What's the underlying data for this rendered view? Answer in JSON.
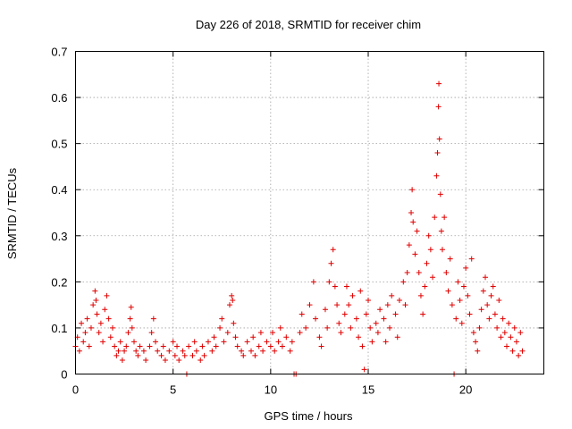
{
  "chart_data": {
    "type": "scatter",
    "title": "Day 226 of 2018, SRMTID for receiver chim",
    "xlabel": "GPS time / hours",
    "ylabel": "SRMTID / TECUs",
    "xlim": [
      0,
      24
    ],
    "ylim": [
      0,
      0.7
    ],
    "xticks": [
      0,
      5,
      10,
      15,
      20
    ],
    "yticks": [
      0,
      0.1,
      0.2,
      0.3,
      0.4,
      0.5,
      0.6,
      0.7
    ],
    "xtick_labels": [
      "0",
      "5",
      "10",
      "15",
      "20"
    ],
    "ytick_labels": [
      "0",
      "0.1",
      "0.2",
      "0.3",
      "0.4",
      "0.5",
      "0.6",
      "0.7"
    ],
    "grid": true,
    "marker": "+",
    "color": "#e00000",
    "series": [
      {
        "name": "SRMTID",
        "points": [
          [
            0.0,
            0.06
          ],
          [
            0.1,
            0.08
          ],
          [
            0.2,
            0.05
          ],
          [
            0.3,
            0.11
          ],
          [
            0.4,
            0.07
          ],
          [
            0.5,
            0.09
          ],
          [
            0.6,
            0.12
          ],
          [
            0.7,
            0.06
          ],
          [
            0.8,
            0.1
          ],
          [
            0.9,
            0.15
          ],
          [
            1.0,
            0.18
          ],
          [
            1.05,
            0.16
          ],
          [
            1.1,
            0.13
          ],
          [
            1.2,
            0.09
          ],
          [
            1.3,
            0.11
          ],
          [
            1.4,
            0.07
          ],
          [
            1.5,
            0.14
          ],
          [
            1.6,
            0.17
          ],
          [
            1.7,
            0.12
          ],
          [
            1.8,
            0.08
          ],
          [
            1.9,
            0.1
          ],
          [
            2.0,
            0.06
          ],
          [
            2.1,
            0.04
          ],
          [
            2.2,
            0.05
          ],
          [
            2.3,
            0.07
          ],
          [
            2.4,
            0.03
          ],
          [
            2.5,
            0.05
          ],
          [
            2.6,
            0.06
          ],
          [
            2.7,
            0.09
          ],
          [
            2.8,
            0.12
          ],
          [
            2.85,
            0.145
          ],
          [
            2.9,
            0.1
          ],
          [
            3.0,
            0.07
          ],
          [
            3.1,
            0.05
          ],
          [
            3.2,
            0.04
          ],
          [
            3.3,
            0.06
          ],
          [
            3.5,
            0.05
          ],
          [
            3.6,
            0.03
          ],
          [
            3.8,
            0.06
          ],
          [
            3.9,
            0.09
          ],
          [
            4.0,
            0.12
          ],
          [
            4.1,
            0.07
          ],
          [
            4.2,
            0.05
          ],
          [
            4.4,
            0.04
          ],
          [
            4.5,
            0.06
          ],
          [
            4.6,
            0.03
          ],
          [
            4.8,
            0.05
          ],
          [
            5.0,
            0.07
          ],
          [
            5.1,
            0.04
          ],
          [
            5.2,
            0.06
          ],
          [
            5.3,
            0.03
          ],
          [
            5.5,
            0.05
          ],
          [
            5.6,
            0.04
          ],
          [
            5.7,
            0.0
          ],
          [
            5.8,
            0.06
          ],
          [
            6.0,
            0.04
          ],
          [
            6.1,
            0.07
          ],
          [
            6.2,
            0.05
          ],
          [
            6.4,
            0.03
          ],
          [
            6.5,
            0.06
          ],
          [
            6.6,
            0.04
          ],
          [
            6.8,
            0.07
          ],
          [
            7.0,
            0.05
          ],
          [
            7.1,
            0.08
          ],
          [
            7.2,
            0.06
          ],
          [
            7.4,
            0.1
          ],
          [
            7.5,
            0.12
          ],
          [
            7.6,
            0.07
          ],
          [
            7.8,
            0.09
          ],
          [
            7.9,
            0.15
          ],
          [
            8.0,
            0.17
          ],
          [
            8.05,
            0.16
          ],
          [
            8.1,
            0.11
          ],
          [
            8.2,
            0.08
          ],
          [
            8.3,
            0.06
          ],
          [
            8.5,
            0.05
          ],
          [
            8.6,
            0.04
          ],
          [
            8.8,
            0.07
          ],
          [
            9.0,
            0.05
          ],
          [
            9.1,
            0.08
          ],
          [
            9.2,
            0.04
          ],
          [
            9.4,
            0.06
          ],
          [
            9.5,
            0.09
          ],
          [
            9.6,
            0.05
          ],
          [
            9.8,
            0.07
          ],
          [
            10.0,
            0.06
          ],
          [
            10.1,
            0.09
          ],
          [
            10.2,
            0.05
          ],
          [
            10.4,
            0.07
          ],
          [
            10.5,
            0.1
          ],
          [
            10.6,
            0.06
          ],
          [
            10.8,
            0.08
          ],
          [
            11.0,
            0.05
          ],
          [
            11.1,
            0.07
          ],
          [
            11.2,
            0.0
          ],
          [
            11.3,
            0.0
          ],
          [
            11.5,
            0.09
          ],
          [
            11.6,
            0.13
          ],
          [
            11.8,
            0.1
          ],
          [
            12.0,
            0.15
          ],
          [
            12.2,
            0.2
          ],
          [
            12.3,
            0.12
          ],
          [
            12.5,
            0.08
          ],
          [
            12.6,
            0.06
          ],
          [
            12.8,
            0.14
          ],
          [
            12.9,
            0.1
          ],
          [
            13.0,
            0.2
          ],
          [
            13.1,
            0.24
          ],
          [
            13.2,
            0.27
          ],
          [
            13.3,
            0.19
          ],
          [
            13.4,
            0.15
          ],
          [
            13.5,
            0.11
          ],
          [
            13.6,
            0.09
          ],
          [
            13.8,
            0.13
          ],
          [
            13.9,
            0.19
          ],
          [
            14.0,
            0.15
          ],
          [
            14.1,
            0.1
          ],
          [
            14.2,
            0.17
          ],
          [
            14.4,
            0.12
          ],
          [
            14.5,
            0.08
          ],
          [
            14.6,
            0.18
          ],
          [
            14.7,
            0.06
          ],
          [
            14.8,
            0.01
          ],
          [
            14.9,
            0.13
          ],
          [
            15.0,
            0.16
          ],
          [
            15.1,
            0.1
          ],
          [
            15.2,
            0.07
          ],
          [
            15.4,
            0.11
          ],
          [
            15.5,
            0.09
          ],
          [
            15.6,
            0.14
          ],
          [
            15.8,
            0.12
          ],
          [
            15.9,
            0.07
          ],
          [
            16.0,
            0.15
          ],
          [
            16.1,
            0.1
          ],
          [
            16.2,
            0.17
          ],
          [
            16.4,
            0.13
          ],
          [
            16.5,
            0.08
          ],
          [
            16.6,
            0.16
          ],
          [
            16.8,
            0.2
          ],
          [
            16.9,
            0.15
          ],
          [
            17.0,
            0.22
          ],
          [
            17.1,
            0.28
          ],
          [
            17.2,
            0.35
          ],
          [
            17.25,
            0.4
          ],
          [
            17.3,
            0.33
          ],
          [
            17.4,
            0.26
          ],
          [
            17.5,
            0.31
          ],
          [
            17.6,
            0.22
          ],
          [
            17.7,
            0.17
          ],
          [
            17.8,
            0.13
          ],
          [
            17.9,
            0.19
          ],
          [
            18.0,
            0.24
          ],
          [
            18.1,
            0.3
          ],
          [
            18.2,
            0.27
          ],
          [
            18.3,
            0.21
          ],
          [
            18.4,
            0.34
          ],
          [
            18.5,
            0.43
          ],
          [
            18.55,
            0.48
          ],
          [
            18.6,
            0.58
          ],
          [
            18.62,
            0.63
          ],
          [
            18.65,
            0.51
          ],
          [
            18.7,
            0.39
          ],
          [
            18.75,
            0.31
          ],
          [
            18.8,
            0.27
          ],
          [
            18.9,
            0.34
          ],
          [
            19.0,
            0.22
          ],
          [
            19.1,
            0.18
          ],
          [
            19.2,
            0.25
          ],
          [
            19.3,
            0.15
          ],
          [
            19.4,
            0.0
          ],
          [
            19.5,
            0.12
          ],
          [
            19.6,
            0.2
          ],
          [
            19.7,
            0.16
          ],
          [
            19.8,
            0.11
          ],
          [
            19.9,
            0.19
          ],
          [
            20.0,
            0.23
          ],
          [
            20.1,
            0.17
          ],
          [
            20.2,
            0.13
          ],
          [
            20.3,
            0.25
          ],
          [
            20.4,
            0.09
          ],
          [
            20.5,
            0.07
          ],
          [
            20.6,
            0.05
          ],
          [
            20.7,
            0.1
          ],
          [
            20.8,
            0.14
          ],
          [
            20.9,
            0.18
          ],
          [
            21.0,
            0.21
          ],
          [
            21.1,
            0.15
          ],
          [
            21.2,
            0.12
          ],
          [
            21.3,
            0.17
          ],
          [
            21.4,
            0.19
          ],
          [
            21.5,
            0.13
          ],
          [
            21.6,
            0.1
          ],
          [
            21.7,
            0.16
          ],
          [
            21.8,
            0.08
          ],
          [
            21.9,
            0.12
          ],
          [
            22.0,
            0.09
          ],
          [
            22.1,
            0.06
          ],
          [
            22.2,
            0.11
          ],
          [
            22.3,
            0.08
          ],
          [
            22.4,
            0.05
          ],
          [
            22.5,
            0.1
          ],
          [
            22.6,
            0.07
          ],
          [
            22.7,
            0.04
          ],
          [
            22.8,
            0.09
          ],
          [
            22.9,
            0.05
          ]
        ]
      }
    ]
  }
}
